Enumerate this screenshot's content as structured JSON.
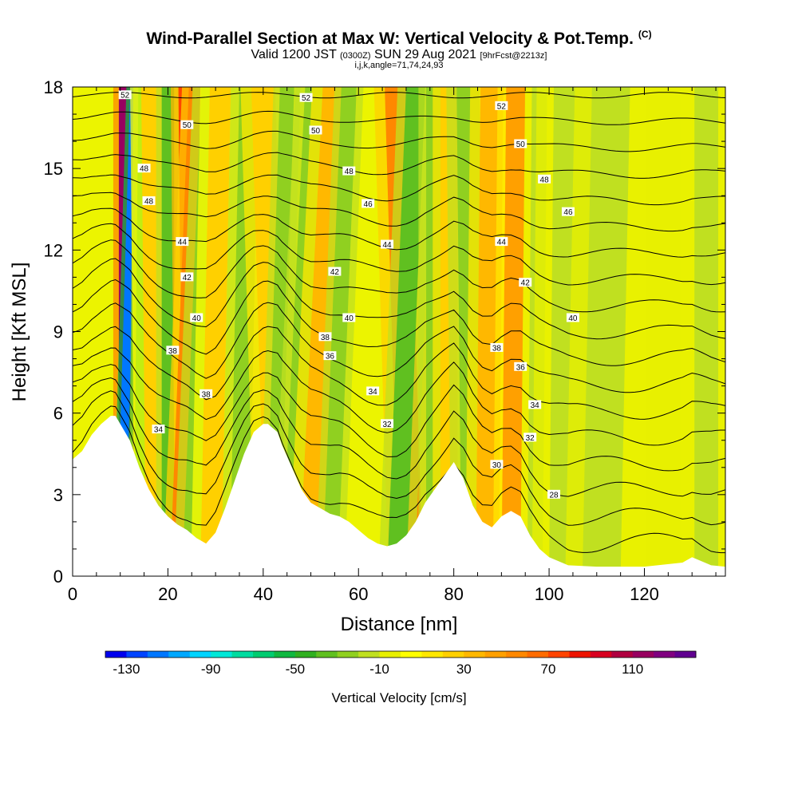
{
  "header": {
    "title": "Wind-Parallel Section at Max W: Vertical Velocity & Pot.Temp.",
    "title_mark": "(C)",
    "sub_a": "Valid 1200 JST",
    "sub_b": "(0300Z)",
    "sub_c": "SUN 29 Aug 2021",
    "sub_d": "[9hrFcst@2213z]",
    "line3": "i,j,k,angle=71,74,24,93"
  },
  "chart_data": {
    "type": "heatmap",
    "xlabel": "Distance [nm]",
    "ylabel": "Height [Kft MSL]",
    "xlim": [
      0,
      137
    ],
    "ylim": [
      0,
      18
    ],
    "x_ticks": [
      "0",
      "20",
      "40",
      "60",
      "80",
      "100",
      "120"
    ],
    "x_tick_values": [
      0,
      20,
      40,
      60,
      80,
      100,
      120
    ],
    "y_ticks": [
      "0",
      "3",
      "6",
      "9",
      "12",
      "15",
      "18"
    ],
    "y_tick_values": [
      0,
      3,
      6,
      9,
      12,
      15,
      18
    ],
    "grid": false,
    "colorbar": {
      "label": "Vertical Velocity [cm/s]",
      "tick_labels": [
        "-130",
        "-90",
        "-50",
        "-10",
        "30",
        "70",
        "110"
      ],
      "tick_values": [
        -130,
        -90,
        -50,
        -10,
        30,
        70,
        110
      ],
      "colors": [
        "#0000ee",
        "#0044ff",
        "#0077ff",
        "#00a8ff",
        "#00d4ff",
        "#00e8d8",
        "#00dca0",
        "#00cc70",
        "#10b840",
        "#30b020",
        "#60c020",
        "#90d020",
        "#c0e020",
        "#e8f000",
        "#ffff00",
        "#ffe800",
        "#ffd000",
        "#ffb800",
        "#ffa000",
        "#ff8800",
        "#ff6c00",
        "#ff4400",
        "#ee1400",
        "#d80020",
        "#b00040",
        "#980060",
        "#800080",
        "#600090"
      ]
    },
    "terrain_profile": {
      "x": [
        0,
        2,
        4,
        6,
        8,
        9,
        10,
        11,
        12,
        13,
        14,
        16,
        18,
        20,
        22,
        24,
        26,
        28,
        30,
        32,
        34,
        36,
        38,
        40,
        41,
        43,
        44,
        46,
        48,
        50,
        52,
        54,
        56,
        58,
        60,
        62,
        64,
        66,
        68,
        70,
        72,
        74,
        76,
        78,
        80,
        82,
        84,
        86,
        88,
        90,
        92,
        94,
        96,
        98,
        100,
        104,
        110,
        120,
        128,
        130,
        134,
        137
      ],
      "height": [
        4.3,
        4.6,
        5.2,
        5.6,
        5.9,
        5.9,
        5.6,
        5.3,
        5.0,
        4.5,
        4.0,
        3.2,
        2.6,
        2.2,
        1.9,
        1.7,
        1.4,
        1.2,
        1.6,
        2.5,
        3.5,
        4.5,
        5.3,
        5.6,
        5.6,
        5.3,
        4.8,
        4.0,
        3.2,
        2.7,
        2.5,
        2.3,
        2.2,
        2.0,
        1.7,
        1.4,
        1.2,
        1.1,
        1.2,
        1.5,
        2.0,
        2.7,
        3.2,
        3.7,
        4.2,
        3.6,
        2.6,
        2.0,
        1.8,
        2.2,
        2.4,
        2.2,
        1.5,
        1.0,
        0.7,
        0.4,
        0.35,
        0.35,
        0.5,
        0.7,
        0.4,
        0.35
      ]
    },
    "theta_contour_labels": [
      {
        "value": "52",
        "x": 11,
        "y": 17.7
      },
      {
        "value": "50",
        "x": 24,
        "y": 16.6
      },
      {
        "value": "48",
        "x": 15,
        "y": 15.0
      },
      {
        "value": "48",
        "x": 16,
        "y": 13.8
      },
      {
        "value": "44",
        "x": 23,
        "y": 12.3
      },
      {
        "value": "42",
        "x": 24,
        "y": 11.0
      },
      {
        "value": "40",
        "x": 26,
        "y": 9.5
      },
      {
        "value": "38",
        "x": 21,
        "y": 8.3
      },
      {
        "value": "38",
        "x": 28,
        "y": 6.7
      },
      {
        "value": "34",
        "x": 18,
        "y": 5.4
      },
      {
        "value": "52",
        "x": 49,
        "y": 17.6
      },
      {
        "value": "50",
        "x": 51,
        "y": 16.4
      },
      {
        "value": "48",
        "x": 58,
        "y": 14.9
      },
      {
        "value": "46",
        "x": 62,
        "y": 13.7
      },
      {
        "value": "44",
        "x": 66,
        "y": 12.2
      },
      {
        "value": "42",
        "x": 55,
        "y": 11.2
      },
      {
        "value": "40",
        "x": 58,
        "y": 9.5
      },
      {
        "value": "38",
        "x": 53,
        "y": 8.8
      },
      {
        "value": "36",
        "x": 54,
        "y": 8.1
      },
      {
        "value": "34",
        "x": 63,
        "y": 6.8
      },
      {
        "value": "32",
        "x": 66,
        "y": 5.6
      },
      {
        "value": "52",
        "x": 90,
        "y": 17.3
      },
      {
        "value": "50",
        "x": 94,
        "y": 15.9
      },
      {
        "value": "48",
        "x": 99,
        "y": 14.6
      },
      {
        "value": "46",
        "x": 104,
        "y": 13.4
      },
      {
        "value": "44",
        "x": 90,
        "y": 12.3
      },
      {
        "value": "42",
        "x": 95,
        "y": 10.8
      },
      {
        "value": "40",
        "x": 105,
        "y": 9.5
      },
      {
        "value": "38",
        "x": 89,
        "y": 8.4
      },
      {
        "value": "36",
        "x": 94,
        "y": 7.7
      },
      {
        "value": "34",
        "x": 97,
        "y": 6.3
      },
      {
        "value": "32",
        "x": 96,
        "y": 5.1
      },
      {
        "value": "30",
        "x": 89,
        "y": 4.1
      },
      {
        "value": "28",
        "x": 101,
        "y": 3.0
      }
    ],
    "updraft_bands": [
      {
        "x_top": 11,
        "x_bottom": 11,
        "width": 1.3,
        "w": 115
      },
      {
        "x_top": 13,
        "x_bottom": 10,
        "width": 0.9,
        "w": -115
      },
      {
        "x_top": 15,
        "x_bottom": 14,
        "width": 1.2,
        "w": -60
      },
      {
        "x_top": 17,
        "x_bottom": 18,
        "width": 2.6,
        "w": 20
      },
      {
        "x_top": 20,
        "x_bottom": 20,
        "width": 1.3,
        "w": -40
      },
      {
        "x_top": 24,
        "x_bottom": 25,
        "width": 1.8,
        "w": 70
      },
      {
        "x_top": 26,
        "x_bottom": 22,
        "width": 1.6,
        "w": 50
      },
      {
        "x_top": 29,
        "x_bottom": 25,
        "width": 2.0,
        "w": -30
      },
      {
        "x_top": 31,
        "x_bottom": 29,
        "width": 2.2,
        "w": 20
      },
      {
        "x_top": 37,
        "x_bottom": 35,
        "width": 2.0,
        "w": -30
      },
      {
        "x_top": 40,
        "x_bottom": 43,
        "width": 2.5,
        "w": 25
      },
      {
        "x_top": 45,
        "x_bottom": 42,
        "width": 1.5,
        "w": -25
      },
      {
        "x_top": 51,
        "x_bottom": 46,
        "width": 2.2,
        "w": -30
      },
      {
        "x_top": 55,
        "x_bottom": 50,
        "width": 2.5,
        "w": 35
      },
      {
        "x_top": 58,
        "x_bottom": 54,
        "width": 1.6,
        "w": -30
      },
      {
        "x_top": 68,
        "x_bottom": 71,
        "width": 2.5,
        "w": 55
      },
      {
        "x_top": 72,
        "x_bottom": 68,
        "width": 2.0,
        "w": -35
      },
      {
        "x_top": 76,
        "x_bottom": 76,
        "width": 1.8,
        "w": -30
      },
      {
        "x_top": 79,
        "x_bottom": 79,
        "width": 1.8,
        "w": 25
      },
      {
        "x_top": 83,
        "x_bottom": 84,
        "width": 2.4,
        "w": -30
      },
      {
        "x_top": 88,
        "x_bottom": 87,
        "width": 2.4,
        "w": 30
      },
      {
        "x_top": 93,
        "x_bottom": 92,
        "width": 2.0,
        "w": 40
      },
      {
        "x_top": 98,
        "x_bottom": 97,
        "width": 1.6,
        "w": -20
      },
      {
        "x_top": 105,
        "x_bottom": 104,
        "width": 4.0,
        "w": -12
      },
      {
        "x_top": 113,
        "x_bottom": 111,
        "width": 4.0,
        "w": -12
      },
      {
        "x_top": 124,
        "x_bottom": 124,
        "width": 3.5,
        "w": -10
      },
      {
        "x_top": 133,
        "x_bottom": 133,
        "width": 2.5,
        "w": -12
      }
    ]
  }
}
